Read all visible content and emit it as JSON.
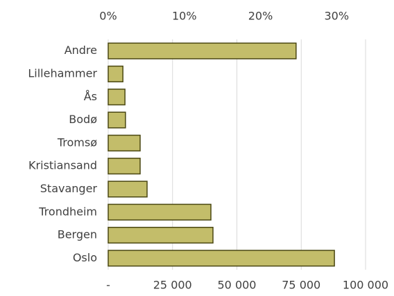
{
  "chart_data": {
    "type": "barh",
    "categories": [
      "Andre",
      "Lillehammer",
      "Ås",
      "Bodø",
      "Tromsø",
      "Kristiansand",
      "Stavanger",
      "Trondheim",
      "Bergen",
      "Oslo"
    ],
    "values": [
      73000,
      5700,
      6500,
      6700,
      12400,
      12400,
      15100,
      39900,
      40700,
      87900
    ],
    "color": "#c3bd6a",
    "edgecolor": "#4a4712",
    "xlim": [
      0,
      100000
    ],
    "xticks": [
      {
        "value": 0,
        "label": "-"
      },
      {
        "value": 25000,
        "label": "25 000"
      },
      {
        "value": 50000,
        "label": "50 000"
      },
      {
        "value": 75000,
        "label": "75 000"
      },
      {
        "value": 100000,
        "label": "100 000"
      }
    ],
    "x2lim": [
      0,
      33.8
    ],
    "x2ticks": [
      {
        "value": 0,
        "label": "0%"
      },
      {
        "value": 10,
        "label": "10%"
      },
      {
        "value": 20,
        "label": "20%"
      },
      {
        "value": 30,
        "label": "30%"
      }
    ],
    "grid": true
  }
}
